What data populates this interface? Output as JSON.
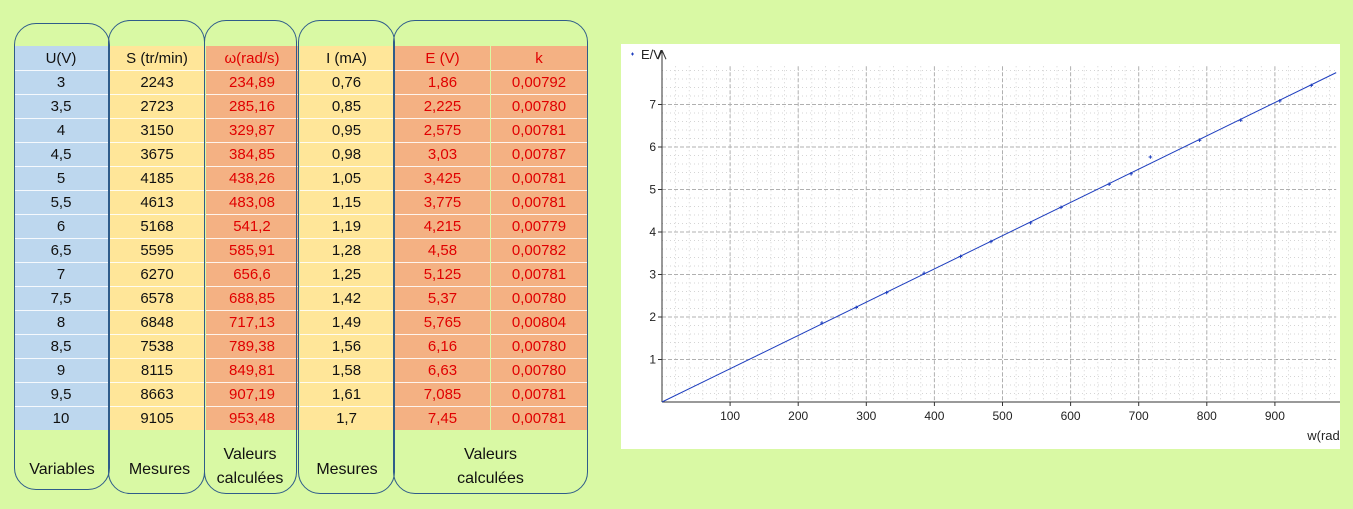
{
  "table": {
    "columns": [
      {
        "header": "U(V)",
        "values": [
          "3",
          "3,5",
          "4",
          "4,5",
          "5",
          "5,5",
          "6",
          "6,5",
          "7",
          "7,5",
          "8",
          "8,5",
          "9",
          "9,5",
          "10"
        ]
      },
      {
        "header": "S (tr/min)",
        "values": [
          "2243",
          "2723",
          "3150",
          "3675",
          "4185",
          "4613",
          "5168",
          "5595",
          "6270",
          "6578",
          "6848",
          "7538",
          "8115",
          "8663",
          "9105"
        ]
      },
      {
        "header": "ω(rad/s)",
        "values": [
          "234,89",
          "285,16",
          "329,87",
          "384,85",
          "438,26",
          "483,08",
          "541,2",
          "585,91",
          "656,6",
          "688,85",
          "717,13",
          "789,38",
          "849,81",
          "907,19",
          "953,48"
        ]
      },
      {
        "header": "I (mA)",
        "values": [
          "0,76",
          "0,85",
          "0,95",
          "0,98",
          "1,05",
          "1,15",
          "1,19",
          "1,28",
          "1,25",
          "1,42",
          "1,49",
          "1,56",
          "1,58",
          "1,61",
          "1,7"
        ]
      },
      {
        "header": "E (V)",
        "values": [
          "1,86",
          "2,225",
          "2,575",
          "3,03",
          "3,425",
          "3,775",
          "4,215",
          "4,58",
          "5,125",
          "5,37",
          "5,765",
          "6,16",
          "6,63",
          "7,085",
          "7,45"
        ]
      },
      {
        "header": "k",
        "values": [
          "0,00792",
          "0,00780",
          "0,00781",
          "0,00787",
          "0,00781",
          "0,00781",
          "0,00779",
          "0,00782",
          "0,00781",
          "0,00780",
          "0,00804",
          "0,00780",
          "0,00780",
          "0,00781",
          "0,00781"
        ]
      }
    ],
    "captions": {
      "variables": "Variables",
      "mesures1": "Mesures",
      "valeurs1_line1": "Valeurs",
      "valeurs1_line2": "calculées",
      "mesures2": "Mesures",
      "valeurs2_line1": "Valeurs",
      "valeurs2_line2": "calculées"
    },
    "colors": {
      "blue": "#bdd7ee",
      "yellow": "#ffe699",
      "orange": "#f4b183",
      "red_text": "#e00000",
      "border": "#2f5c8a"
    }
  },
  "chart_data": {
    "type": "scatter",
    "xlabel": "w(rad/s)",
    "ylabel": "E/V",
    "xlim": [
      0,
      990
    ],
    "ylim": [
      0,
      7.9
    ],
    "x_ticks": [
      "100",
      "200",
      "300",
      "400",
      "500",
      "600",
      "700",
      "800",
      "900"
    ],
    "y_ticks": [
      "1",
      "2",
      "3",
      "4",
      "5",
      "6",
      "7"
    ],
    "grid": true,
    "trendline": {
      "x": [
        0,
        990
      ],
      "y": [
        0,
        7.75
      ]
    },
    "series": [
      {
        "x": [
          234.89,
          285.16,
          329.87,
          384.85,
          438.26,
          483.08,
          541.2,
          585.91,
          656.6,
          688.85,
          717.13,
          789.38,
          849.81,
          907.19,
          953.48
        ],
        "y": [
          1.86,
          2.225,
          2.575,
          3.03,
          3.425,
          3.775,
          4.215,
          4.58,
          5.125,
          5.37,
          5.765,
          6.16,
          6.63,
          7.085,
          7.45
        ],
        "color": "#1f3fbf"
      }
    ]
  }
}
